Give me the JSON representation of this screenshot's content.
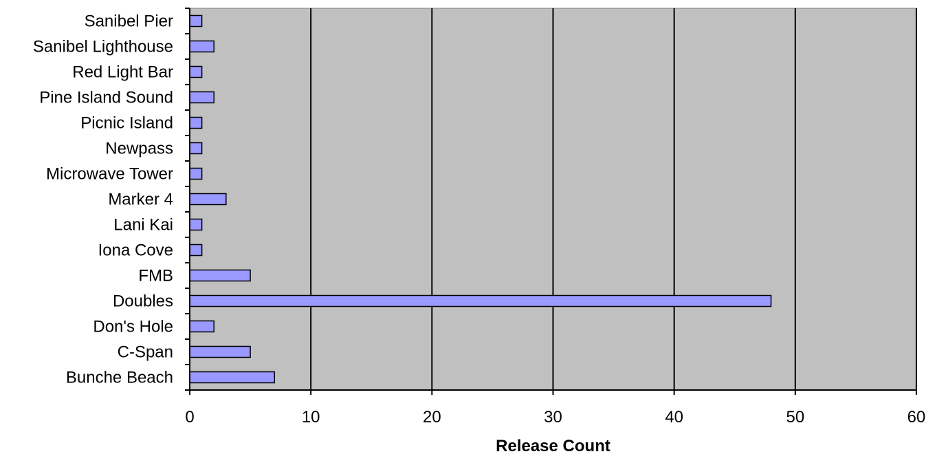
{
  "chart_data": {
    "type": "bar",
    "orientation": "horizontal",
    "categories": [
      "Sanibel Pier",
      "Sanibel Lighthouse",
      "Red Light Bar",
      "Pine Island Sound",
      "Picnic Island",
      "Newpass",
      "Microwave Tower",
      "Marker 4",
      "Lani Kai",
      "Iona Cove",
      "FMB",
      "Doubles",
      "Don's Hole",
      "C-Span",
      "Bunche Beach"
    ],
    "values": [
      1,
      2,
      1,
      2,
      1,
      1,
      1,
      3,
      1,
      1,
      5,
      48,
      2,
      5,
      7
    ],
    "title": "",
    "xlabel": "Release Count",
    "ylabel": "",
    "xlim": [
      0,
      60
    ],
    "xticks": [
      0,
      10,
      20,
      30,
      40,
      50,
      60
    ],
    "grid": "vertical",
    "legend": "none",
    "colors": {
      "bar": "#9999ff",
      "plot_bg": "#c0c0c0",
      "gridline": "#000000"
    }
  }
}
